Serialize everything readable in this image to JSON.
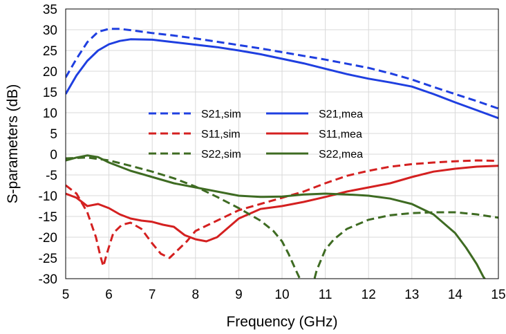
{
  "chart_data": {
    "type": "line",
    "title": "",
    "xlabel": "Frequency (GHz)",
    "ylabel": "S-parameters (dB)",
    "xlim": [
      5,
      15
    ],
    "ylim": [
      -30,
      35
    ],
    "x_ticks": [
      "5",
      "6",
      "7",
      "8",
      "9",
      "10",
      "11",
      "12",
      "13",
      "14",
      "15"
    ],
    "y_ticks": [
      "35",
      "30",
      "25",
      "20",
      "15",
      "10",
      "5",
      "0",
      "-5",
      "-10",
      "-15",
      "-20",
      "-25",
      "-30"
    ],
    "grid": true,
    "legend_position": "center-left",
    "series": [
      {
        "name": "S21,sim",
        "color": "#1f3fe0",
        "dash": "dashed",
        "x": [
          5,
          5.25,
          5.5,
          5.75,
          6,
          6.25,
          6.5,
          7,
          7.5,
          8,
          8.5,
          9,
          9.5,
          10,
          10.5,
          11,
          11.5,
          12,
          12.5,
          13,
          13.5,
          14,
          14.5,
          15
        ],
        "y": [
          18.5,
          23,
          27,
          29.5,
          30.2,
          30.2,
          29.9,
          29.2,
          28.6,
          27.9,
          27.1,
          26.3,
          25.5,
          24.6,
          23.7,
          22.8,
          21.8,
          20.8,
          19.5,
          18,
          16.2,
          14.5,
          12.8,
          11
        ]
      },
      {
        "name": "S21,mea",
        "color": "#1f3fe0",
        "dash": "solid",
        "x": [
          5,
          5.25,
          5.5,
          5.75,
          6,
          6.25,
          6.5,
          7,
          7.5,
          8,
          8.5,
          9,
          9.5,
          10,
          10.5,
          11,
          11.5,
          12,
          12.5,
          13,
          13.5,
          14,
          14.5,
          15
        ],
        "y": [
          14.5,
          19,
          22.5,
          25,
          26.5,
          27.3,
          27.7,
          27.6,
          27,
          26.4,
          25.8,
          25,
          24.1,
          23,
          21.9,
          20.6,
          19.3,
          18.2,
          17.3,
          16.3,
          14.5,
          12.5,
          10.6,
          8.7
        ]
      },
      {
        "name": "S11,sim",
        "color": "#d42020",
        "dash": "dashed",
        "x": [
          5,
          5.25,
          5.5,
          5.7,
          5.8,
          5.87,
          5.95,
          6.1,
          6.3,
          6.5,
          6.75,
          7,
          7.2,
          7.4,
          7.6,
          7.8,
          8,
          8.5,
          9,
          9.5,
          10,
          10.5,
          11,
          11.5,
          12,
          12.5,
          13,
          13.5,
          14,
          14.5,
          15
        ],
        "y": [
          -7.5,
          -9.5,
          -14,
          -20,
          -24.5,
          -27,
          -24,
          -19,
          -17,
          -16.5,
          -18,
          -21.5,
          -24,
          -25,
          -23,
          -21,
          -18.5,
          -16,
          -13.5,
          -12,
          -10.5,
          -9,
          -7,
          -5.2,
          -4,
          -3,
          -2.4,
          -2,
          -1.7,
          -1.5,
          -1.6
        ]
      },
      {
        "name": "S11,mea",
        "color": "#d42020",
        "dash": "solid",
        "x": [
          5,
          5.25,
          5.5,
          5.75,
          6,
          6.25,
          6.5,
          6.75,
          7,
          7.25,
          7.5,
          7.75,
          8,
          8.25,
          8.5,
          9,
          9.5,
          10,
          10.5,
          11,
          11.5,
          12,
          12.5,
          13,
          13.5,
          14,
          14.5,
          15
        ],
        "y": [
          -9.5,
          -10.5,
          -12.5,
          -12,
          -13,
          -14.5,
          -15.5,
          -16,
          -16.3,
          -17,
          -17.5,
          -19.5,
          -20.5,
          -21,
          -20,
          -15.5,
          -13.2,
          -12.5,
          -11.5,
          -10.3,
          -9,
          -8,
          -7,
          -5.5,
          -4.2,
          -3.5,
          -3,
          -2.8
        ]
      },
      {
        "name": "S22,sim",
        "color": "#3e6b22",
        "dash": "dashed",
        "x": [
          5,
          5.5,
          6,
          6.5,
          7,
          7.5,
          8,
          8.5,
          9,
          9.5,
          9.8,
          10,
          10.15,
          10.3,
          10.5,
          10.7,
          10.8,
          11,
          11.2,
          11.5,
          12,
          12.5,
          13,
          13.5,
          14,
          14.5,
          15
        ],
        "y": [
          -1,
          -0.8,
          -1.5,
          -2.8,
          -4.2,
          -5.8,
          -7.8,
          -10.3,
          -13,
          -16,
          -18.5,
          -21,
          -24,
          -27.5,
          -32,
          -32,
          -28,
          -23,
          -20.5,
          -18,
          -15.8,
          -14.7,
          -14.2,
          -14,
          -14,
          -14.5,
          -15.3
        ]
      },
      {
        "name": "S22,mea",
        "color": "#3e6b22",
        "dash": "solid",
        "x": [
          5,
          5.25,
          5.5,
          5.75,
          6,
          6.5,
          7,
          7.5,
          8,
          8.5,
          9,
          9.5,
          10,
          10.5,
          11,
          11.5,
          12,
          12.5,
          13,
          13.5,
          14,
          14.25,
          14.5,
          14.65,
          14.75
        ],
        "y": [
          -1.5,
          -0.8,
          -0.3,
          -0.7,
          -2,
          -4,
          -5.5,
          -7,
          -8,
          -9,
          -10,
          -10.3,
          -10.2,
          -9.7,
          -9.5,
          -9.7,
          -10,
          -10.7,
          -12,
          -14.5,
          -19,
          -22.5,
          -26.5,
          -29.5,
          -31
        ]
      }
    ]
  }
}
